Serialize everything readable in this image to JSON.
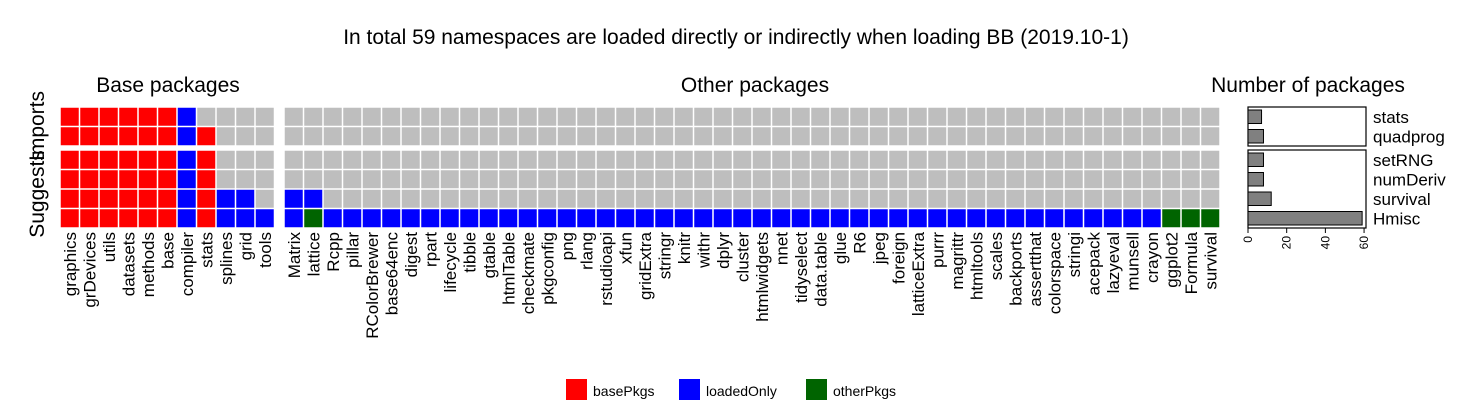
{
  "title": "In total 59 namespaces are loaded directly or indirectly when loading BB (2019.10-1)",
  "panels": {
    "base_title": "Base packages",
    "other_title": "Other packages",
    "count_title": "Number of packages"
  },
  "row_groups": {
    "imports": "Imports",
    "suggests": "Suggests"
  },
  "colors": {
    "basePkgs": "#ff0000",
    "loadedOnly": "#0000ff",
    "otherPkgs": "#006400",
    "none": "#bebebe",
    "bar": "#808080"
  },
  "legend": [
    {
      "key": "basePkgs",
      "label": "basePkgs"
    },
    {
      "key": "loadedOnly",
      "label": "loadedOnly"
    },
    {
      "key": "otherPkgs",
      "label": "otherPkgs"
    }
  ],
  "chart_data": {
    "type": "heatmap",
    "base_columns": [
      "graphics",
      "grDevices",
      "utils",
      "datasets",
      "methods",
      "base",
      "compiler",
      "stats",
      "splines",
      "grid",
      "tools"
    ],
    "other_columns": [
      "Matrix",
      "lattice",
      "Rcpp",
      "pillar",
      "RColorBrewer",
      "base64enc",
      "digest",
      "rpart",
      "lifecycle",
      "tibble",
      "gtable",
      "htmlTable",
      "checkmate",
      "pkgconfig",
      "png",
      "rlang",
      "rstudioapi",
      "xfun",
      "gridExtra",
      "stringr",
      "knitr",
      "withr",
      "dplyr",
      "cluster",
      "htmlwidgets",
      "nnet",
      "tidyselect",
      "data.table",
      "glue",
      "R6",
      "jpeg",
      "foreign",
      "latticeExtra",
      "purrr",
      "magrittr",
      "htmltools",
      "scales",
      "backports",
      "assertthat",
      "colorspace",
      "stringi",
      "acepack",
      "lazyeval",
      "munsell",
      "crayon",
      "ggplot2",
      "Formula",
      "survival"
    ],
    "rows": [
      {
        "package": "stats",
        "group": "Imports",
        "base": [
          "basePkgs",
          "basePkgs",
          "basePkgs",
          "basePkgs",
          "basePkgs",
          "basePkgs",
          "loadedOnly",
          "none",
          "none",
          "none",
          "none"
        ],
        "other_filled": {}
      },
      {
        "package": "quadprog",
        "group": "Imports",
        "base": [
          "basePkgs",
          "basePkgs",
          "basePkgs",
          "basePkgs",
          "basePkgs",
          "basePkgs",
          "loadedOnly",
          "basePkgs",
          "none",
          "none",
          "none"
        ],
        "other_filled": {}
      },
      {
        "package": "setRNG",
        "group": "Suggests",
        "base": [
          "basePkgs",
          "basePkgs",
          "basePkgs",
          "basePkgs",
          "basePkgs",
          "basePkgs",
          "loadedOnly",
          "basePkgs",
          "none",
          "none",
          "none"
        ],
        "other_filled": {}
      },
      {
        "package": "numDeriv",
        "group": "Suggests",
        "base": [
          "basePkgs",
          "basePkgs",
          "basePkgs",
          "basePkgs",
          "basePkgs",
          "basePkgs",
          "loadedOnly",
          "basePkgs",
          "none",
          "none",
          "none"
        ],
        "other_filled": {}
      },
      {
        "package": "survival",
        "group": "Suggests",
        "base": [
          "basePkgs",
          "basePkgs",
          "basePkgs",
          "basePkgs",
          "basePkgs",
          "basePkgs",
          "loadedOnly",
          "basePkgs",
          "loadedOnly",
          "loadedOnly",
          "none"
        ],
        "other_filled": {
          "Matrix": "loadedOnly",
          "lattice": "loadedOnly"
        }
      },
      {
        "package": "Hmisc",
        "group": "Suggests",
        "base": [
          "basePkgs",
          "basePkgs",
          "basePkgs",
          "basePkgs",
          "basePkgs",
          "basePkgs",
          "loadedOnly",
          "basePkgs",
          "loadedOnly",
          "loadedOnly",
          "loadedOnly"
        ],
        "other_filled": {
          "__default__": "loadedOnly",
          "lattice": "otherPkgs",
          "ggplot2": "otherPkgs",
          "Formula": "otherPkgs",
          "survival": "otherPkgs"
        }
      }
    ],
    "counts": [
      {
        "package": "stats",
        "value": 7
      },
      {
        "package": "quadprog",
        "value": 8
      },
      {
        "package": "setRNG",
        "value": 8
      },
      {
        "package": "numDeriv",
        "value": 8
      },
      {
        "package": "survival",
        "value": 12
      },
      {
        "package": "Hmisc",
        "value": 59
      }
    ],
    "count_axis": {
      "ticks": [
        0,
        20,
        40,
        60
      ],
      "xlim": [
        0,
        61
      ]
    }
  }
}
